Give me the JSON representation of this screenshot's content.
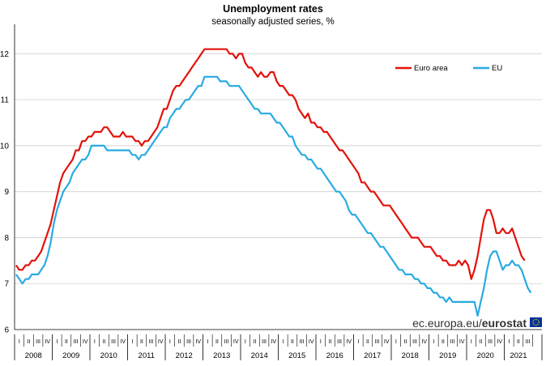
{
  "chart_data": {
    "type": "line",
    "title": "Unemployment rates",
    "subtitle": "seasonally adjusted series, %",
    "frequency": "monthly",
    "x_start": "2008-01",
    "ylim": [
      6,
      12.5
    ],
    "yticks": [
      6,
      7,
      8,
      9,
      10,
      11,
      12
    ],
    "grid": "horizontal",
    "legend_position": "top-right",
    "years": [
      "2008",
      "2009",
      "2010",
      "2011",
      "2012",
      "2013",
      "2014",
      "2015",
      "2016",
      "2017",
      "2018",
      "2019",
      "2020",
      "2021"
    ],
    "quarter_labels": [
      "I",
      "II",
      "III",
      "IV"
    ],
    "series": [
      {
        "name": "Euro area",
        "color": "#e3120b",
        "values": [
          7.4,
          7.3,
          7.3,
          7.4,
          7.4,
          7.5,
          7.5,
          7.6,
          7.7,
          7.9,
          8.1,
          8.3,
          8.6,
          8.9,
          9.2,
          9.4,
          9.5,
          9.6,
          9.7,
          9.9,
          9.9,
          10.1,
          10.1,
          10.2,
          10.2,
          10.3,
          10.3,
          10.3,
          10.4,
          10.4,
          10.3,
          10.2,
          10.2,
          10.2,
          10.3,
          10.2,
          10.2,
          10.2,
          10.1,
          10.1,
          10.0,
          10.1,
          10.1,
          10.2,
          10.3,
          10.4,
          10.6,
          10.8,
          10.8,
          11.0,
          11.2,
          11.3,
          11.3,
          11.4,
          11.5,
          11.6,
          11.7,
          11.8,
          11.9,
          12.0,
          12.1,
          12.1,
          12.1,
          12.1,
          12.1,
          12.1,
          12.1,
          12.1,
          12.0,
          12.0,
          11.9,
          12.0,
          12.0,
          11.8,
          11.7,
          11.7,
          11.6,
          11.5,
          11.6,
          11.5,
          11.5,
          11.6,
          11.6,
          11.4,
          11.3,
          11.3,
          11.2,
          11.1,
          11.1,
          11.0,
          10.8,
          10.7,
          10.6,
          10.7,
          10.5,
          10.5,
          10.4,
          10.4,
          10.3,
          10.3,
          10.2,
          10.1,
          10.0,
          9.9,
          9.9,
          9.8,
          9.7,
          9.6,
          9.5,
          9.4,
          9.2,
          9.2,
          9.1,
          9.0,
          9.0,
          8.9,
          8.8,
          8.7,
          8.7,
          8.7,
          8.6,
          8.5,
          8.4,
          8.3,
          8.2,
          8.1,
          8.0,
          8.0,
          8.0,
          7.9,
          7.8,
          7.8,
          7.8,
          7.7,
          7.6,
          7.6,
          7.5,
          7.5,
          7.4,
          7.4,
          7.4,
          7.5,
          7.4,
          7.5,
          7.4,
          7.1,
          7.3,
          7.6,
          8.0,
          8.4,
          8.6,
          8.6,
          8.4,
          8.1,
          8.1,
          8.2,
          8.1,
          8.1,
          8.2,
          8.0,
          7.8,
          7.6,
          7.5
        ]
      },
      {
        "name": "EU",
        "color": "#29abe2",
        "values": [
          7.2,
          7.1,
          7.0,
          7.1,
          7.1,
          7.2,
          7.2,
          7.2,
          7.3,
          7.4,
          7.6,
          7.9,
          8.3,
          8.6,
          8.8,
          9.0,
          9.1,
          9.2,
          9.4,
          9.5,
          9.6,
          9.7,
          9.7,
          9.8,
          10.0,
          10.0,
          10.0,
          10.0,
          10.0,
          9.9,
          9.9,
          9.9,
          9.9,
          9.9,
          9.9,
          9.9,
          9.9,
          9.8,
          9.8,
          9.7,
          9.8,
          9.8,
          9.9,
          10.0,
          10.1,
          10.2,
          10.3,
          10.4,
          10.4,
          10.6,
          10.7,
          10.8,
          10.8,
          10.9,
          11.0,
          11.0,
          11.1,
          11.2,
          11.3,
          11.3,
          11.5,
          11.5,
          11.5,
          11.5,
          11.5,
          11.4,
          11.4,
          11.4,
          11.3,
          11.3,
          11.3,
          11.3,
          11.2,
          11.1,
          11.0,
          10.9,
          10.8,
          10.8,
          10.7,
          10.7,
          10.7,
          10.7,
          10.6,
          10.5,
          10.5,
          10.4,
          10.3,
          10.2,
          10.2,
          10.0,
          9.9,
          9.8,
          9.8,
          9.7,
          9.7,
          9.6,
          9.5,
          9.5,
          9.4,
          9.3,
          9.2,
          9.1,
          9.0,
          9.0,
          8.9,
          8.8,
          8.6,
          8.5,
          8.5,
          8.4,
          8.3,
          8.2,
          8.1,
          8.1,
          8.0,
          7.9,
          7.8,
          7.8,
          7.7,
          7.6,
          7.5,
          7.4,
          7.3,
          7.3,
          7.2,
          7.2,
          7.2,
          7.1,
          7.1,
          7.0,
          7.0,
          6.9,
          6.9,
          6.8,
          6.8,
          6.7,
          6.7,
          6.6,
          6.7,
          6.6,
          6.6,
          6.6,
          6.6,
          6.6,
          6.6,
          6.6,
          6.6,
          6.3,
          6.6,
          6.9,
          7.3,
          7.6,
          7.7,
          7.7,
          7.5,
          7.3,
          7.4,
          7.4,
          7.5,
          7.4,
          7.4,
          7.3,
          7.1,
          6.9,
          6.8
        ]
      }
    ]
  },
  "credit": {
    "prefix": "ec.europa.eu/",
    "brand": "eurostat"
  }
}
